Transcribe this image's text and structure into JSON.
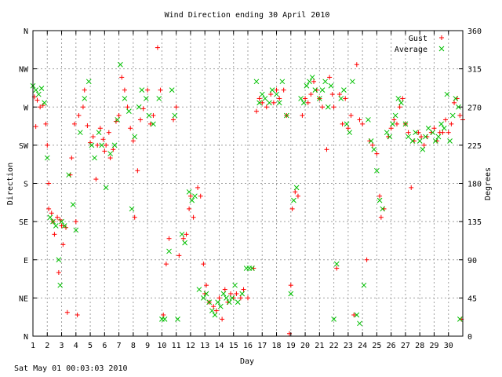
{
  "footer_timestamp": "Sat May 01 00:03:03 2010",
  "chart_data": {
    "type": "scatter",
    "title": "Wind Direction ending 30 April 2010",
    "xlabel": "Day",
    "ylabel_left": "Direction",
    "ylabel_right": "Degrees",
    "xlim": [
      1,
      31
    ],
    "ylim": [
      0,
      360
    ],
    "grid": true,
    "legend_position": "top-right",
    "x_ticks": [
      1,
      2,
      3,
      4,
      5,
      6,
      7,
      8,
      9,
      10,
      11,
      12,
      13,
      14,
      15,
      16,
      17,
      18,
      19,
      20,
      21,
      22,
      23,
      24,
      25,
      26,
      27,
      28,
      29,
      30
    ],
    "y_ticks_left": [
      {
        "value": 0,
        "label": "N"
      },
      {
        "value": 45,
        "label": "NE"
      },
      {
        "value": 90,
        "label": "E"
      },
      {
        "value": 135,
        "label": "SE"
      },
      {
        "value": 180,
        "label": "S"
      },
      {
        "value": 225,
        "label": "SW"
      },
      {
        "value": 270,
        "label": "W"
      },
      {
        "value": 315,
        "label": "NW"
      },
      {
        "value": 360,
        "label": "N"
      }
    ],
    "y_ticks_right": [
      0,
      45,
      90,
      135,
      180,
      225,
      270,
      315,
      360
    ],
    "series": [
      {
        "name": "Gust",
        "marker": "plus",
        "color": "#ff0000",
        "points": [
          [
            1.1,
            282
          ],
          [
            1.3,
            278
          ],
          [
            1.5,
            270
          ],
          [
            1.2,
            247
          ],
          [
            1.7,
            272
          ],
          [
            1.9,
            250
          ],
          [
            2.0,
            225
          ],
          [
            2.1,
            180
          ],
          [
            2.1,
            150
          ],
          [
            2.3,
            145
          ],
          [
            2.4,
            135
          ],
          [
            2.5,
            120
          ],
          [
            2.7,
            140
          ],
          [
            2.9,
            137
          ],
          [
            3.0,
            130
          ],
          [
            2.8,
            75
          ],
          [
            3.1,
            108
          ],
          [
            3.3,
            128
          ],
          [
            3.4,
            28
          ],
          [
            3.6,
            190
          ],
          [
            3.7,
            210
          ],
          [
            3.9,
            250
          ],
          [
            4.0,
            135
          ],
          [
            4.1,
            25
          ],
          [
            4.2,
            260
          ],
          [
            4.5,
            270
          ],
          [
            4.6,
            290
          ],
          [
            4.8,
            248
          ],
          [
            5.0,
            228
          ],
          [
            5.2,
            235
          ],
          [
            5.4,
            185
          ],
          [
            5.5,
            225
          ],
          [
            5.7,
            245
          ],
          [
            5.9,
            232
          ],
          [
            6.0,
            218
          ],
          [
            6.1,
            225
          ],
          [
            6.3,
            240
          ],
          [
            6.4,
            210
          ],
          [
            6.6,
            220
          ],
          [
            6.8,
            253
          ],
          [
            7.0,
            260
          ],
          [
            7.2,
            305
          ],
          [
            7.4,
            290
          ],
          [
            7.6,
            270
          ],
          [
            7.8,
            245
          ],
          [
            8.0,
            230
          ],
          [
            8.1,
            140
          ],
          [
            8.3,
            195
          ],
          [
            8.5,
            255
          ],
          [
            8.7,
            268
          ],
          [
            9.0,
            290
          ],
          [
            9.2,
            250
          ],
          [
            9.4,
            260
          ],
          [
            9.7,
            340
          ],
          [
            9.9,
            290
          ],
          [
            10.1,
            25
          ],
          [
            10.3,
            85
          ],
          [
            10.5,
            115
          ],
          [
            10.8,
            255
          ],
          [
            11.0,
            270
          ],
          [
            11.2,
            95
          ],
          [
            11.5,
            115
          ],
          [
            11.7,
            120
          ],
          [
            11.9,
            150
          ],
          [
            12.0,
            165
          ],
          [
            12.2,
            140
          ],
          [
            12.5,
            175
          ],
          [
            12.7,
            165
          ],
          [
            12.9,
            85
          ],
          [
            13.0,
            50
          ],
          [
            13.1,
            60
          ],
          [
            13.3,
            40
          ],
          [
            13.6,
            35
          ],
          [
            13.8,
            30
          ],
          [
            14.0,
            45
          ],
          [
            14.2,
            20
          ],
          [
            14.4,
            55
          ],
          [
            14.6,
            40
          ],
          [
            14.8,
            50
          ],
          [
            15.0,
            45
          ],
          [
            15.2,
            50
          ],
          [
            15.5,
            45
          ],
          [
            15.7,
            55
          ],
          [
            16.0,
            45
          ],
          [
            16.4,
            80
          ],
          [
            16.6,
            265
          ],
          [
            16.8,
            280
          ],
          [
            17.0,
            275
          ],
          [
            17.3,
            270
          ],
          [
            17.6,
            285
          ],
          [
            17.8,
            275
          ],
          [
            18.0,
            290
          ],
          [
            18.2,
            280
          ],
          [
            18.5,
            290
          ],
          [
            18.7,
            260
          ],
          [
            18.9,
            3
          ],
          [
            19.0,
            60
          ],
          [
            19.1,
            150
          ],
          [
            19.3,
            170
          ],
          [
            19.5,
            165
          ],
          [
            19.8,
            260
          ],
          [
            20.0,
            280
          ],
          [
            20.2,
            275
          ],
          [
            20.4,
            285
          ],
          [
            20.6,
            300
          ],
          [
            20.8,
            290
          ],
          [
            21.0,
            280
          ],
          [
            21.2,
            270
          ],
          [
            21.5,
            220
          ],
          [
            21.7,
            305
          ],
          [
            21.9,
            285
          ],
          [
            22.0,
            270
          ],
          [
            22.2,
            80
          ],
          [
            22.4,
            285
          ],
          [
            22.6,
            250
          ],
          [
            22.8,
            280
          ],
          [
            23.0,
            245
          ],
          [
            23.2,
            260
          ],
          [
            23.4,
            25
          ],
          [
            23.6,
            320
          ],
          [
            23.8,
            255
          ],
          [
            24.0,
            250
          ],
          [
            24.3,
            90
          ],
          [
            24.5,
            230
          ],
          [
            24.7,
            225
          ],
          [
            25.0,
            215
          ],
          [
            25.2,
            165
          ],
          [
            25.3,
            140
          ],
          [
            25.5,
            150
          ],
          [
            25.8,
            235
          ],
          [
            26.0,
            245
          ],
          [
            26.2,
            255
          ],
          [
            26.4,
            250
          ],
          [
            26.6,
            270
          ],
          [
            26.8,
            280
          ],
          [
            27.0,
            250
          ],
          [
            27.2,
            240
          ],
          [
            27.4,
            175
          ],
          [
            27.6,
            230
          ],
          [
            27.9,
            240
          ],
          [
            28.1,
            235
          ],
          [
            28.3,
            225
          ],
          [
            28.5,
            235
          ],
          [
            28.8,
            240
          ],
          [
            29.0,
            245
          ],
          [
            29.2,
            230
          ],
          [
            29.4,
            240
          ],
          [
            29.6,
            240
          ],
          [
            29.8,
            255
          ],
          [
            30.0,
            240
          ],
          [
            30.2,
            250
          ],
          [
            30.4,
            275
          ],
          [
            30.6,
            280
          ],
          [
            30.8,
            260
          ],
          [
            30.9,
            20
          ],
          [
            31.0,
            255
          ]
        ]
      },
      {
        "name": "Average",
        "marker": "x",
        "color": "#00c000",
        "points": [
          [
            1.0,
            295
          ],
          [
            1.2,
            290
          ],
          [
            1.4,
            285
          ],
          [
            1.6,
            292
          ],
          [
            1.8,
            275
          ],
          [
            2.0,
            210
          ],
          [
            2.2,
            140
          ],
          [
            2.4,
            135
          ],
          [
            2.6,
            130
          ],
          [
            2.8,
            90
          ],
          [
            2.9,
            60
          ],
          [
            3.0,
            135
          ],
          [
            3.2,
            130
          ],
          [
            3.5,
            190
          ],
          [
            3.8,
            155
          ],
          [
            4.0,
            125
          ],
          [
            4.3,
            240
          ],
          [
            4.6,
            280
          ],
          [
            4.9,
            300
          ],
          [
            5.1,
            225
          ],
          [
            5.3,
            210
          ],
          [
            5.6,
            240
          ],
          [
            5.8,
            225
          ],
          [
            6.1,
            175
          ],
          [
            6.4,
            215
          ],
          [
            6.7,
            225
          ],
          [
            6.9,
            255
          ],
          [
            7.1,
            320
          ],
          [
            7.4,
            280
          ],
          [
            7.7,
            265
          ],
          [
            7.9,
            150
          ],
          [
            8.1,
            235
          ],
          [
            8.4,
            270
          ],
          [
            8.6,
            290
          ],
          [
            8.9,
            280
          ],
          [
            9.1,
            260
          ],
          [
            9.4,
            250
          ],
          [
            9.8,
            280
          ],
          [
            10.0,
            20
          ],
          [
            10.2,
            20
          ],
          [
            10.5,
            100
          ],
          [
            10.7,
            290
          ],
          [
            10.9,
            260
          ],
          [
            11.1,
            20
          ],
          [
            11.4,
            120
          ],
          [
            11.6,
            110
          ],
          [
            11.9,
            170
          ],
          [
            12.1,
            160
          ],
          [
            12.3,
            165
          ],
          [
            12.6,
            55
          ],
          [
            12.9,
            45
          ],
          [
            13.1,
            50
          ],
          [
            13.3,
            40
          ],
          [
            13.5,
            30
          ],
          [
            13.7,
            25
          ],
          [
            13.9,
            40
          ],
          [
            14.1,
            35
          ],
          [
            14.3,
            50
          ],
          [
            14.5,
            45
          ],
          [
            14.7,
            40
          ],
          [
            14.9,
            45
          ],
          [
            15.1,
            60
          ],
          [
            15.3,
            40
          ],
          [
            15.6,
            50
          ],
          [
            15.9,
            80
          ],
          [
            16.1,
            80
          ],
          [
            16.3,
            80
          ],
          [
            16.6,
            300
          ],
          [
            16.8,
            275
          ],
          [
            17.0,
            285
          ],
          [
            17.2,
            280
          ],
          [
            17.5,
            275
          ],
          [
            17.7,
            290
          ],
          [
            18.0,
            285
          ],
          [
            18.2,
            275
          ],
          [
            18.4,
            300
          ],
          [
            18.7,
            260
          ],
          [
            19.0,
            50
          ],
          [
            19.2,
            160
          ],
          [
            19.4,
            175
          ],
          [
            19.7,
            280
          ],
          [
            19.9,
            275
          ],
          [
            20.1,
            295
          ],
          [
            20.3,
            300
          ],
          [
            20.5,
            305
          ],
          [
            20.7,
            290
          ],
          [
            21.0,
            280
          ],
          [
            21.2,
            290
          ],
          [
            21.4,
            300
          ],
          [
            21.6,
            270
          ],
          [
            21.8,
            295
          ],
          [
            22.0,
            20
          ],
          [
            22.2,
            85
          ],
          [
            22.5,
            280
          ],
          [
            22.7,
            290
          ],
          [
            22.9,
            250
          ],
          [
            23.1,
            240
          ],
          [
            23.3,
            300
          ],
          [
            23.6,
            25
          ],
          [
            23.8,
            15
          ],
          [
            24.1,
            60
          ],
          [
            24.4,
            255
          ],
          [
            24.6,
            230
          ],
          [
            24.8,
            220
          ],
          [
            25.0,
            195
          ],
          [
            25.2,
            160
          ],
          [
            25.4,
            150
          ],
          [
            25.7,
            240
          ],
          [
            25.9,
            235
          ],
          [
            26.1,
            250
          ],
          [
            26.3,
            260
          ],
          [
            26.5,
            280
          ],
          [
            26.7,
            275
          ],
          [
            27.0,
            250
          ],
          [
            27.2,
            235
          ],
          [
            27.5,
            230
          ],
          [
            27.7,
            240
          ],
          [
            28.0,
            230
          ],
          [
            28.2,
            220
          ],
          [
            28.4,
            235
          ],
          [
            28.6,
            245
          ],
          [
            28.9,
            240
          ],
          [
            29.1,
            230
          ],
          [
            29.3,
            235
          ],
          [
            29.5,
            250
          ],
          [
            29.7,
            245
          ],
          [
            29.9,
            285
          ],
          [
            30.1,
            230
          ],
          [
            30.3,
            260
          ],
          [
            30.5,
            280
          ],
          [
            30.7,
            270
          ],
          [
            30.8,
            20
          ]
        ]
      }
    ]
  }
}
